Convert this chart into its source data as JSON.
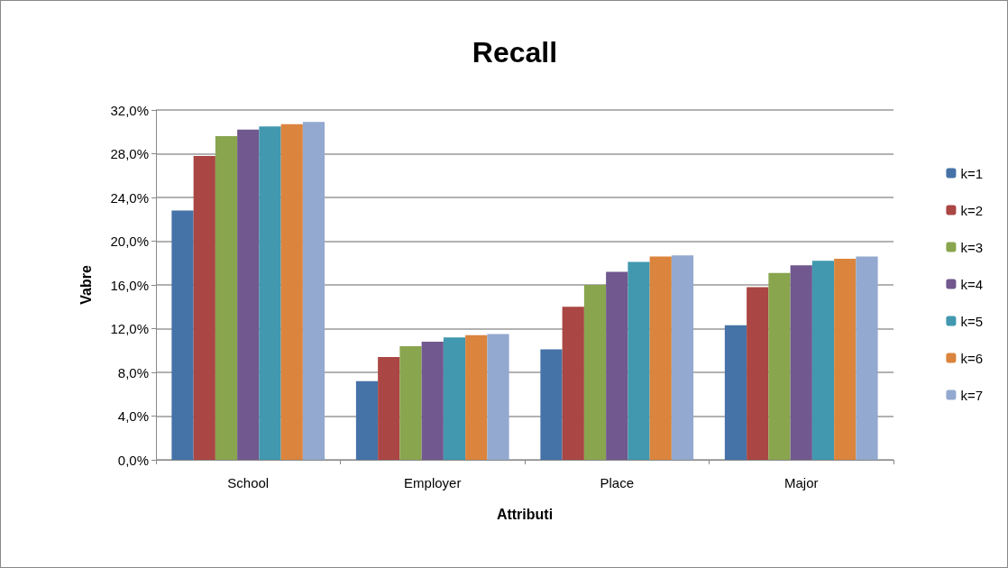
{
  "chart_data": {
    "type": "bar",
    "title": "Recall",
    "xlabel": "Attributi",
    "ylabel": "Vabre",
    "categories": [
      "School",
      "Employer",
      "Place",
      "Major"
    ],
    "series": [
      {
        "name": "k=1",
        "color": "#4572a7",
        "values": [
          22.8,
          7.2,
          10.1,
          12.3
        ]
      },
      {
        "name": "k=2",
        "color": "#aa4643",
        "values": [
          27.8,
          9.4,
          14.0,
          15.8
        ]
      },
      {
        "name": "k=3",
        "color": "#89a54e",
        "values": [
          29.6,
          10.4,
          16.0,
          17.1
        ]
      },
      {
        "name": "k=4",
        "color": "#71588f",
        "values": [
          30.2,
          10.8,
          17.2,
          17.8
        ]
      },
      {
        "name": "k=5",
        "color": "#4198af",
        "values": [
          30.5,
          11.2,
          18.1,
          18.2
        ]
      },
      {
        "name": "k=6",
        "color": "#db843d",
        "values": [
          30.7,
          11.4,
          18.6,
          18.4
        ]
      },
      {
        "name": "k=7",
        "color": "#93a9cf",
        "values": [
          30.9,
          11.5,
          18.7,
          18.6
        ]
      }
    ],
    "ylim": [
      0,
      32
    ],
    "yticks": [
      {
        "value": 0,
        "label": "0,0%"
      },
      {
        "value": 4,
        "label": "4,0%"
      },
      {
        "value": 8,
        "label": "8,0%"
      },
      {
        "value": 12,
        "label": "12,0%"
      },
      {
        "value": 16,
        "label": "16,0%"
      },
      {
        "value": 20,
        "label": "20,0%"
      },
      {
        "value": 24,
        "label": "24,0%"
      },
      {
        "value": 28,
        "label": "28,0%"
      },
      {
        "value": 32,
        "label": "32,0%"
      }
    ],
    "grid": "y",
    "legend": "right"
  }
}
